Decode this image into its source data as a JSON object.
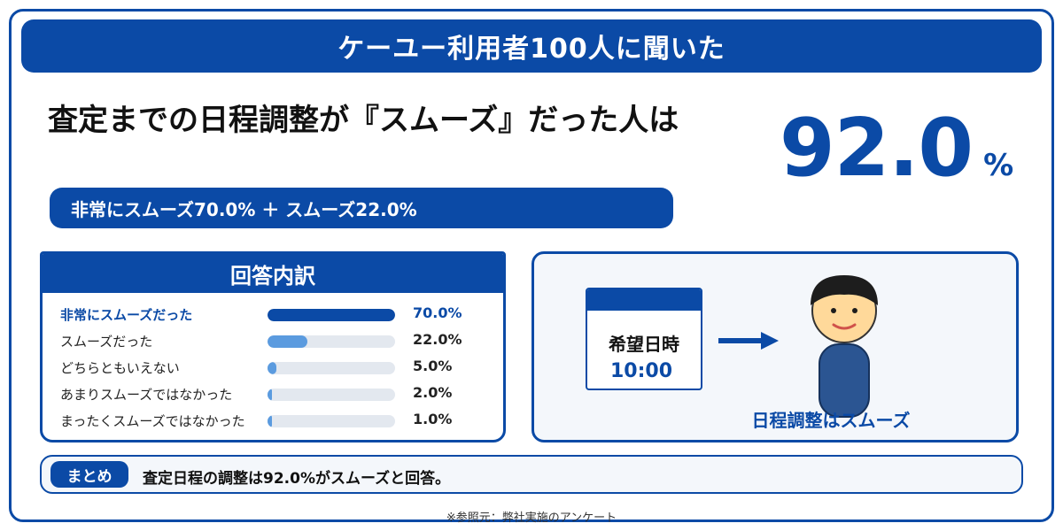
{
  "banner": {
    "title": "ケーユー利用者100人に聞いた"
  },
  "headline": {
    "text": "査定までの日程調整が『スムーズ』だった人は"
  },
  "highlight": {
    "value": "92.0",
    "unit": "%"
  },
  "breakdown": {
    "text": "非常にスムーズ70.0% ＋ スムーズ22.0%"
  },
  "panel": {
    "title": "回答内訳"
  },
  "colors": {
    "primary": "#0b4aa6",
    "secondary": "#5b9bdf",
    "track": "#e3e8ef"
  },
  "chart_data": {
    "type": "bar",
    "orientation": "horizontal",
    "title": "回答内訳",
    "categories": [
      "非常にスムーズだった",
      "スムーズだった",
      "どちらともいえない",
      "あまりスムーズではなかった",
      "まったくスムーズではなかった"
    ],
    "values": [
      70.0,
      22.0,
      5.0,
      2.0,
      1.0
    ],
    "value_labels": [
      "70.0%",
      "22.0%",
      "5.0%",
      "2.0%",
      "1.0%"
    ],
    "xlim": [
      0,
      70
    ],
    "grid": false
  },
  "illustration": {
    "calendar_label": "希望日時",
    "calendar_time": "10:00",
    "caption": "日程調整はスムーズ",
    "icons": [
      "calendar-icon",
      "right-arrow-icon",
      "person-icon"
    ]
  },
  "summary": {
    "tag": "まとめ",
    "text": "査定日程の調整は92.0%がスムーズと回答。"
  },
  "source": {
    "text": "※参照元：弊社実施のアンケート"
  }
}
